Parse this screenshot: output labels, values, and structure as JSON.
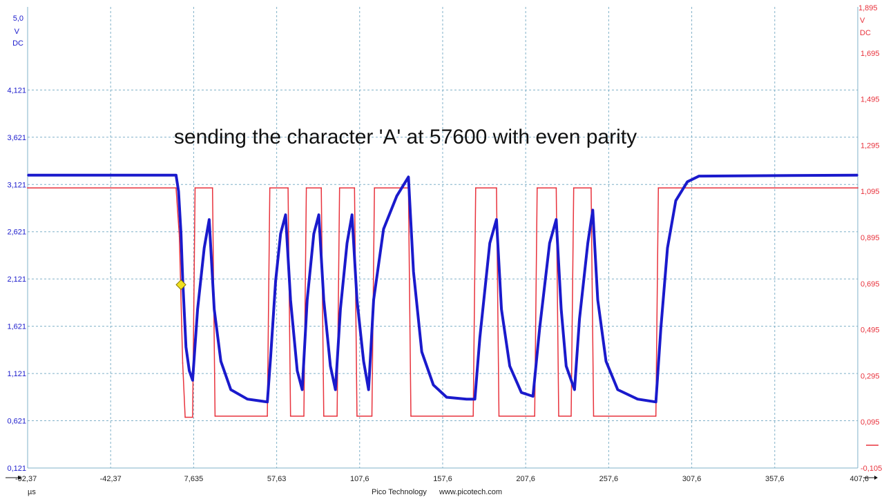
{
  "footer": {
    "brand": "Pico Technology",
    "website": "www.picotech.com"
  },
  "chart_data": {
    "type": "line",
    "annotation": "sending the character 'A' at 57600 with even parity",
    "x_unit": "µs",
    "xlim": [
      -92.37,
      407.6
    ],
    "x_ticks": [
      "-92,37",
      "-42,37",
      "7,635",
      "57,63",
      "107,6",
      "157,6",
      "207,6",
      "257,6",
      "307,6",
      "357,6",
      "407,6"
    ],
    "left_axis": {
      "unit_lines": [
        "5,0",
        "V",
        "DC"
      ],
      "ylim": [
        0.121,
        5.0
      ],
      "color": "#1a1acc",
      "ticks": [
        {
          "value": 4.121,
          "label": "4,121"
        },
        {
          "value": 3.621,
          "label": "3,621"
        },
        {
          "value": 3.121,
          "label": "3,121"
        },
        {
          "value": 2.621,
          "label": "2,621"
        },
        {
          "value": 2.121,
          "label": "2,121"
        },
        {
          "value": 1.621,
          "label": "1,621"
        },
        {
          "value": 1.121,
          "label": "1,121"
        },
        {
          "value": 0.621,
          "label": "0,621"
        },
        {
          "value": 0.121,
          "label": "0,121"
        }
      ]
    },
    "right_axis": {
      "unit_lines": [
        "1,895",
        "V",
        "DC"
      ],
      "ylim": [
        -0.105,
        1.895
      ],
      "color": "#e8323c",
      "ticks": [
        {
          "value": 1.695,
          "label": "1,695"
        },
        {
          "value": 1.495,
          "label": "1,495"
        },
        {
          "value": 1.295,
          "label": "1,295"
        },
        {
          "value": 1.095,
          "label": "1,095"
        },
        {
          "value": 0.895,
          "label": "0,895"
        },
        {
          "value": 0.695,
          "label": "0,695"
        },
        {
          "value": 0.495,
          "label": "0,495"
        },
        {
          "value": 0.295,
          "label": "0,295"
        },
        {
          "value": 0.095,
          "label": "0,095"
        },
        {
          "value": -0.105,
          "label": "-0,105"
        }
      ]
    },
    "grid": true,
    "series": [
      {
        "axis": "left",
        "color": "#1a1acc",
        "points": [
          [
            -92.37,
            3.22
          ],
          [
            -3.0,
            3.22
          ],
          [
            -1.5,
            3.05
          ],
          [
            0.0,
            2.6
          ],
          [
            1.0,
            2.121
          ],
          [
            3.0,
            1.4
          ],
          [
            5.0,
            1.15
          ],
          [
            7.0,
            1.05
          ],
          [
            10.0,
            1.8
          ],
          [
            14.0,
            2.45
          ],
          [
            17.0,
            2.75
          ],
          [
            20.0,
            1.8
          ],
          [
            24.0,
            1.25
          ],
          [
            30.0,
            0.95
          ],
          [
            40.0,
            0.85
          ],
          [
            52.0,
            0.82
          ],
          [
            54.0,
            1.3
          ],
          [
            57.0,
            2.1
          ],
          [
            60.0,
            2.6
          ],
          [
            63.0,
            2.8
          ],
          [
            66.0,
            1.9
          ],
          [
            70.0,
            1.15
          ],
          [
            73.0,
            0.95
          ],
          [
            76.0,
            1.9
          ],
          [
            80.0,
            2.6
          ],
          [
            83.0,
            2.8
          ],
          [
            86.0,
            1.9
          ],
          [
            90.0,
            1.2
          ],
          [
            93.0,
            0.95
          ],
          [
            96.0,
            1.8
          ],
          [
            100.0,
            2.5
          ],
          [
            103.0,
            2.8
          ],
          [
            106.0,
            1.9
          ],
          [
            110.0,
            1.25
          ],
          [
            113.0,
            0.95
          ],
          [
            116.0,
            1.9
          ],
          [
            122.0,
            2.65
          ],
          [
            130.0,
            3.0
          ],
          [
            137.0,
            3.2
          ],
          [
            140.0,
            2.2
          ],
          [
            145.0,
            1.35
          ],
          [
            152.0,
            1.0
          ],
          [
            160.0,
            0.87
          ],
          [
            172.0,
            0.85
          ],
          [
            177.0,
            0.85
          ],
          [
            180.0,
            1.5
          ],
          [
            186.0,
            2.5
          ],
          [
            190.0,
            2.75
          ],
          [
            193.0,
            1.8
          ],
          [
            198.0,
            1.2
          ],
          [
            205.0,
            0.92
          ],
          [
            212.0,
            0.88
          ],
          [
            216.0,
            1.6
          ],
          [
            222.0,
            2.5
          ],
          [
            226.0,
            2.75
          ],
          [
            229.0,
            1.8
          ],
          [
            232.0,
            1.2
          ],
          [
            237.0,
            0.95
          ],
          [
            240.0,
            1.7
          ],
          [
            245.0,
            2.5
          ],
          [
            248.0,
            2.85
          ],
          [
            251.0,
            1.9
          ],
          [
            256.0,
            1.25
          ],
          [
            263.0,
            0.95
          ],
          [
            275.0,
            0.85
          ],
          [
            286.0,
            0.82
          ],
          [
            289.0,
            1.6
          ],
          [
            293.0,
            2.45
          ],
          [
            298.0,
            2.95
          ],
          [
            305.0,
            3.15
          ],
          [
            312.0,
            3.21
          ],
          [
            407.6,
            3.22
          ]
        ]
      },
      {
        "axis": "right",
        "color": "#e8323c",
        "points": [
          [
            -92.37,
            1.11
          ],
          [
            -3.0,
            1.11
          ],
          [
            -1.0,
            0.9
          ],
          [
            1.0,
            0.35
          ],
          [
            2.5,
            0.115
          ],
          [
            7.0,
            0.115
          ],
          [
            8.5,
            1.11
          ],
          [
            19.0,
            1.11
          ],
          [
            20.5,
            0.12
          ],
          [
            52.0,
            0.12
          ],
          [
            53.5,
            1.11
          ],
          [
            64.5,
            1.11
          ],
          [
            66.0,
            0.12
          ],
          [
            74.0,
            0.12
          ],
          [
            75.5,
            1.11
          ],
          [
            84.5,
            1.11
          ],
          [
            86.0,
            0.12
          ],
          [
            94.0,
            0.12
          ],
          [
            95.5,
            1.11
          ],
          [
            104.5,
            1.11
          ],
          [
            106.0,
            0.12
          ],
          [
            115.0,
            0.12
          ],
          [
            116.5,
            1.11
          ],
          [
            137.0,
            1.11
          ],
          [
            138.5,
            0.12
          ],
          [
            176.0,
            0.12
          ],
          [
            177.5,
            1.11
          ],
          [
            190.0,
            1.11
          ],
          [
            191.5,
            0.12
          ],
          [
            213.0,
            0.12
          ],
          [
            214.5,
            1.11
          ],
          [
            226.0,
            1.11
          ],
          [
            227.5,
            0.12
          ],
          [
            235.0,
            0.12
          ],
          [
            236.5,
            1.11
          ],
          [
            247.0,
            1.11
          ],
          [
            248.5,
            0.12
          ],
          [
            286.0,
            0.12
          ],
          [
            287.5,
            1.11
          ],
          [
            407.6,
            1.11
          ]
        ]
      }
    ],
    "trigger_marker": {
      "x": 0.0,
      "y": 2.06,
      "color": "#f0e020"
    }
  }
}
